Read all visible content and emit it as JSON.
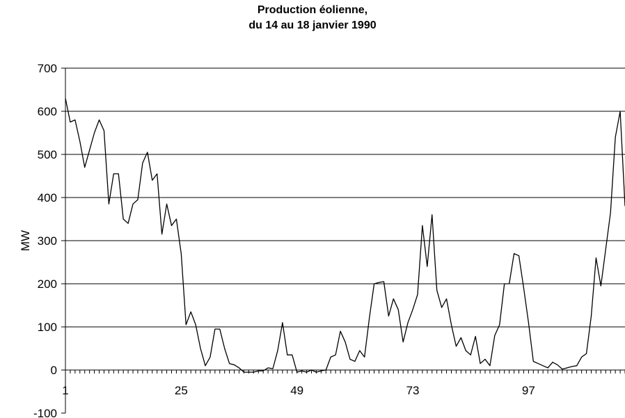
{
  "chart_data": {
    "type": "line",
    "title": [
      "Production éolienne,",
      "du 14 au 18 janvier 1990"
    ],
    "xlabel": "",
    "ylabel": "MW",
    "ylim": [
      -100,
      700
    ],
    "yticks": [
      -100,
      0,
      100,
      200,
      300,
      400,
      500,
      600,
      700
    ],
    "xticks": [
      1,
      25,
      49,
      73,
      97
    ],
    "xlim": [
      1,
      117
    ],
    "grid": "horizontal",
    "series_color": "#000000",
    "series": [
      {
        "x": [
          1,
          2,
          3,
          4,
          5,
          6,
          7,
          8,
          9,
          10,
          11,
          12,
          13,
          14,
          15,
          16,
          17,
          18,
          19,
          20,
          21,
          22,
          23,
          24,
          25,
          26,
          27,
          28,
          29,
          30,
          31,
          32,
          33,
          34,
          35,
          36,
          37,
          38,
          39,
          40,
          41,
          42,
          43,
          44,
          45,
          46,
          47,
          48,
          49,
          50,
          51,
          52,
          53,
          54,
          55,
          56,
          57,
          58,
          59,
          60,
          61,
          62,
          63,
          64,
          65,
          66,
          67,
          68,
          69,
          70,
          71,
          72,
          73,
          74,
          75,
          76,
          77,
          78,
          79,
          80,
          81,
          82,
          83,
          84,
          85,
          86,
          87,
          88,
          89,
          90,
          91,
          92,
          93,
          94,
          95,
          96,
          97,
          98,
          99,
          100,
          101,
          102,
          103,
          104,
          105,
          106,
          107,
          108,
          109,
          110,
          111,
          112,
          113,
          114,
          115,
          116,
          117
        ],
        "values": [
          630,
          575,
          580,
          530,
          470,
          510,
          550,
          580,
          555,
          385,
          455,
          455,
          350,
          340,
          385,
          395,
          480,
          505,
          440,
          455,
          315,
          385,
          335,
          350,
          270,
          105,
          135,
          105,
          50,
          10,
          30,
          95,
          95,
          50,
          15,
          12,
          5,
          -5,
          -5,
          -5,
          -2,
          -2,
          5,
          3,
          45,
          110,
          35,
          35,
          -5,
          -2,
          -5,
          0,
          -5,
          -2,
          0,
          30,
          35,
          90,
          65,
          25,
          20,
          45,
          30,
          120,
          200,
          203,
          205,
          125,
          165,
          140,
          65,
          110,
          140,
          175,
          335,
          240,
          360,
          185,
          145,
          165,
          105,
          55,
          75,
          45,
          35,
          78,
          15,
          25,
          10,
          80,
          105,
          200,
          200,
          270,
          265,
          190,
          110,
          20,
          15,
          10,
          5,
          18,
          12,
          2,
          5,
          8,
          10,
          30,
          38,
          125,
          260,
          195,
          280,
          365,
          540,
          600,
          380
        ]
      }
    ]
  }
}
